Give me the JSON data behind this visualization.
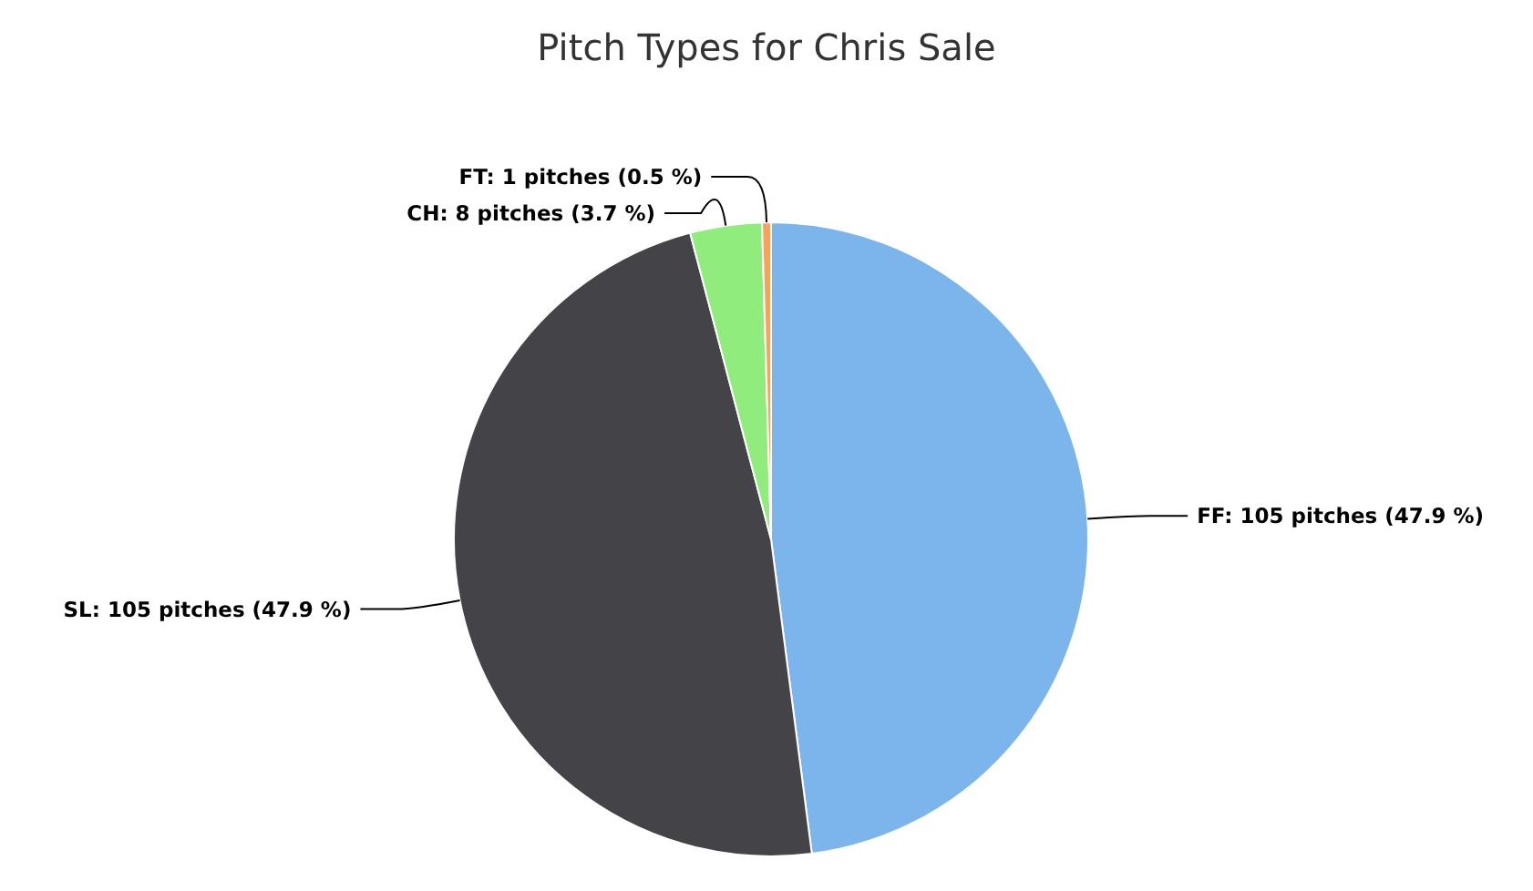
{
  "chart_data": {
    "type": "pie",
    "title": "Pitch Types for Chris Sale",
    "categories": [
      "FF",
      "SL",
      "CH",
      "FT"
    ],
    "values": [
      105,
      105,
      8,
      1
    ],
    "colors": [
      "#7cb5ec",
      "#434348",
      "#90ed7d",
      "#f7a35c"
    ],
    "value_labels": [
      ": 105 pitches (47.9 %)",
      ": 105 pitches (47.9 %)",
      ": 8 pitches (3.7 %)",
      ": 1 pitches (0.5 %)"
    ]
  }
}
